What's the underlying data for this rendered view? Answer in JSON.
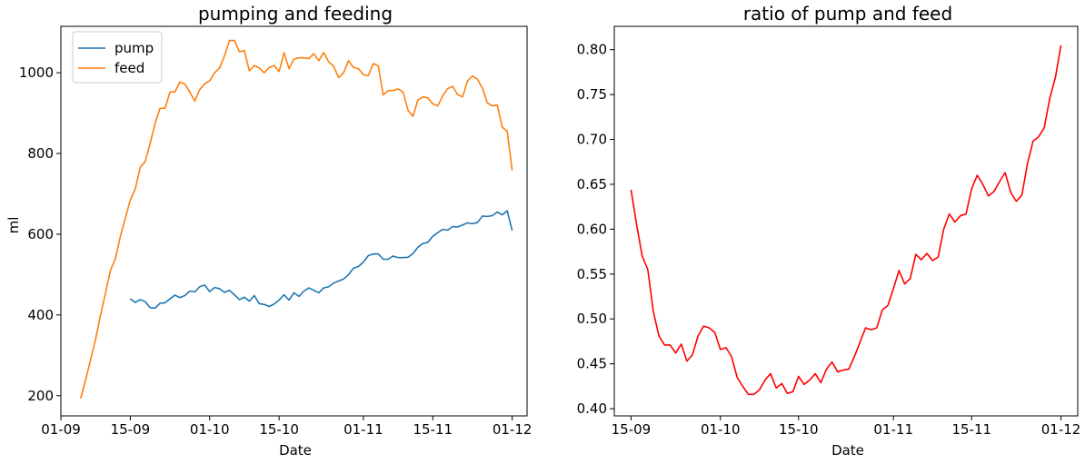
{
  "chart_data": [
    {
      "type": "line",
      "title": "pumping and feeding",
      "xlabel": "Date",
      "ylabel": "ml",
      "x_is_date": true,
      "xlim": [
        "2021-09-01",
        "2021-12-04"
      ],
      "xticks": [
        {
          "value": "2021-09-01",
          "label": "01-09"
        },
        {
          "value": "2021-09-15",
          "label": "15-09"
        },
        {
          "value": "2021-10-01",
          "label": "01-10"
        },
        {
          "value": "2021-10-15",
          "label": "15-10"
        },
        {
          "value": "2021-11-01",
          "label": "01-11"
        },
        {
          "value": "2021-11-15",
          "label": "15-11"
        },
        {
          "value": "2021-12-01",
          "label": "01-12"
        }
      ],
      "ylim": [
        150,
        1115
      ],
      "yticks": [
        200,
        400,
        600,
        800,
        1000
      ],
      "grid": false,
      "legend": "top-left",
      "series": [
        {
          "name": "pump",
          "color": "#1f77b4",
          "x": [
            "2021-09-15",
            "2021-09-16",
            "2021-09-17",
            "2021-09-18",
            "2021-09-19",
            "2021-09-20",
            "2021-09-21",
            "2021-09-22",
            "2021-09-23",
            "2021-09-24",
            "2021-09-25",
            "2021-09-26",
            "2021-09-27",
            "2021-09-28",
            "2021-09-29",
            "2021-09-30",
            "2021-10-01",
            "2021-10-02",
            "2021-10-03",
            "2021-10-04",
            "2021-10-05",
            "2021-10-06",
            "2021-10-07",
            "2021-10-08",
            "2021-10-09",
            "2021-10-10",
            "2021-10-11",
            "2021-10-12",
            "2021-10-13",
            "2021-10-14",
            "2021-10-15",
            "2021-10-16",
            "2021-10-17",
            "2021-10-18",
            "2021-10-19",
            "2021-10-20",
            "2021-10-21",
            "2021-10-22",
            "2021-10-23",
            "2021-10-24",
            "2021-10-25",
            "2021-10-26",
            "2021-10-27",
            "2021-10-28",
            "2021-10-29",
            "2021-10-30",
            "2021-10-31",
            "2021-11-01",
            "2021-11-02",
            "2021-11-03",
            "2021-11-04",
            "2021-11-05",
            "2021-11-06",
            "2021-11-07",
            "2021-11-08",
            "2021-11-09",
            "2021-11-10",
            "2021-11-11",
            "2021-11-12",
            "2021-11-13",
            "2021-11-14",
            "2021-11-15",
            "2021-11-16",
            "2021-11-17",
            "2021-11-18",
            "2021-11-19",
            "2021-11-20",
            "2021-11-21",
            "2021-11-22",
            "2021-11-23",
            "2021-11-24",
            "2021-11-25",
            "2021-11-26",
            "2021-11-27",
            "2021-11-28",
            "2021-11-29",
            "2021-11-30",
            "2021-12-01"
          ],
          "y": [
            440,
            431,
            438,
            433,
            418,
            417,
            429,
            430,
            440,
            449,
            443,
            448,
            459,
            457,
            470,
            474,
            458,
            468,
            465,
            456,
            461,
            450,
            438,
            444,
            434,
            448,
            428,
            426,
            421,
            427,
            437,
            450,
            437,
            455,
            446,
            459,
            467,
            461,
            455,
            467,
            470,
            479,
            484,
            489,
            500,
            516,
            520,
            531,
            547,
            551,
            551,
            538,
            538,
            546,
            542,
            542,
            543,
            552,
            568,
            577,
            580,
            595,
            604,
            612,
            610,
            619,
            618,
            623,
            628,
            626,
            629,
            645,
            644,
            646,
            655,
            648,
            658,
            609
          ]
        },
        {
          "name": "feed",
          "color": "#ff7f0e",
          "x": [
            "2021-09-05",
            "2021-09-06",
            "2021-09-07",
            "2021-09-08",
            "2021-09-09",
            "2021-09-10",
            "2021-09-11",
            "2021-09-12",
            "2021-09-13",
            "2021-09-14",
            "2021-09-15",
            "2021-09-16",
            "2021-09-17",
            "2021-09-18",
            "2021-09-19",
            "2021-09-20",
            "2021-09-21",
            "2021-09-22",
            "2021-09-23",
            "2021-09-24",
            "2021-09-25",
            "2021-09-26",
            "2021-09-27",
            "2021-09-28",
            "2021-09-29",
            "2021-09-30",
            "2021-10-01",
            "2021-10-02",
            "2021-10-03",
            "2021-10-04",
            "2021-10-05",
            "2021-10-06",
            "2021-10-07",
            "2021-10-08",
            "2021-10-09",
            "2021-10-10",
            "2021-10-11",
            "2021-10-12",
            "2021-10-13",
            "2021-10-14",
            "2021-10-15",
            "2021-10-16",
            "2021-10-17",
            "2021-10-18",
            "2021-10-19",
            "2021-10-20",
            "2021-10-21",
            "2021-10-22",
            "2021-10-23",
            "2021-10-24",
            "2021-10-25",
            "2021-10-26",
            "2021-10-27",
            "2021-10-28",
            "2021-10-29",
            "2021-10-30",
            "2021-10-31",
            "2021-11-01",
            "2021-11-02",
            "2021-11-03",
            "2021-11-04",
            "2021-11-05",
            "2021-11-06",
            "2021-11-07",
            "2021-11-08",
            "2021-11-09",
            "2021-11-10",
            "2021-11-11",
            "2021-11-12",
            "2021-11-13",
            "2021-11-14",
            "2021-11-15",
            "2021-11-16",
            "2021-11-17",
            "2021-11-18",
            "2021-11-19",
            "2021-11-20",
            "2021-11-21",
            "2021-11-22",
            "2021-11-23",
            "2021-11-24",
            "2021-11-25",
            "2021-11-26",
            "2021-11-27",
            "2021-11-28",
            "2021-11-29",
            "2021-11-30",
            "2021-12-01"
          ],
          "y": [
            193,
            240,
            290,
            340,
            400,
            455,
            510,
            540,
            595,
            640,
            685,
            712,
            766,
            780,
            825,
            875,
            912,
            912,
            952,
            953,
            977,
            972,
            952,
            930,
            958,
            973,
            980,
            1000,
            1012,
            1042,
            1080,
            1080,
            1052,
            1055,
            1005,
            1018,
            1012,
            1000,
            1013,
            1018,
            1003,
            1050,
            1010,
            1034,
            1037,
            1037,
            1035,
            1047,
            1030,
            1050,
            1027,
            1016,
            988,
            1000,
            1030,
            1013,
            1010,
            995,
            993,
            1023,
            1017,
            945,
            956,
            956,
            960,
            952,
            907,
            892,
            933,
            940,
            938,
            923,
            918,
            943,
            961,
            966,
            946,
            940,
            980,
            992,
            984,
            962,
            925,
            918,
            920,
            865,
            855,
            758
          ]
        }
      ]
    },
    {
      "type": "line",
      "title": "ratio of pump and feed",
      "xlabel": "Date",
      "ylabel": "",
      "x_is_date": true,
      "xlim": [
        "2021-09-12",
        "2021-12-04"
      ],
      "xticks": [
        {
          "value": "2021-09-15",
          "label": "15-09"
        },
        {
          "value": "2021-10-01",
          "label": "01-10"
        },
        {
          "value": "2021-10-15",
          "label": "15-10"
        },
        {
          "value": "2021-11-01",
          "label": "01-11"
        },
        {
          "value": "2021-11-15",
          "label": "15-11"
        },
        {
          "value": "2021-12-01",
          "label": "01-12"
        }
      ],
      "ylim": [
        0.392,
        0.826
      ],
      "yticks": [
        0.4,
        0.45,
        0.5,
        0.55,
        0.6,
        0.65,
        0.7,
        0.75,
        0.8
      ],
      "yticklabels": [
        "0.40",
        "0.45",
        "0.50",
        "0.55",
        "0.60",
        "0.65",
        "0.70",
        "0.75",
        "0.80"
      ],
      "grid": false,
      "legend": "none",
      "series": [
        {
          "color": "#ff0000",
          "x": [
            "2021-09-15",
            "2021-09-16",
            "2021-09-17",
            "2021-09-18",
            "2021-09-19",
            "2021-09-20",
            "2021-09-21",
            "2021-09-22",
            "2021-09-23",
            "2021-09-24",
            "2021-09-25",
            "2021-09-26",
            "2021-09-27",
            "2021-09-28",
            "2021-09-29",
            "2021-09-30",
            "2021-10-01",
            "2021-10-02",
            "2021-10-03",
            "2021-10-04",
            "2021-10-05",
            "2021-10-06",
            "2021-10-07",
            "2021-10-08",
            "2021-10-09",
            "2021-10-10",
            "2021-10-11",
            "2021-10-12",
            "2021-10-13",
            "2021-10-14",
            "2021-10-15",
            "2021-10-16",
            "2021-10-17",
            "2021-10-18",
            "2021-10-19",
            "2021-10-20",
            "2021-10-21",
            "2021-10-22",
            "2021-10-23",
            "2021-10-24",
            "2021-10-25",
            "2021-10-26",
            "2021-10-27",
            "2021-10-28",
            "2021-10-29",
            "2021-10-30",
            "2021-10-31",
            "2021-11-01",
            "2021-11-02",
            "2021-11-03",
            "2021-11-04",
            "2021-11-05",
            "2021-11-06",
            "2021-11-07",
            "2021-11-08",
            "2021-11-09",
            "2021-11-10",
            "2021-11-11",
            "2021-11-12",
            "2021-11-13",
            "2021-11-14",
            "2021-11-15",
            "2021-11-16",
            "2021-11-17",
            "2021-11-18",
            "2021-11-19",
            "2021-11-20",
            "2021-11-21",
            "2021-11-22",
            "2021-11-23",
            "2021-11-24",
            "2021-11-25",
            "2021-11-26",
            "2021-11-27",
            "2021-11-28",
            "2021-11-29",
            "2021-11-30",
            "2021-12-01"
          ],
          "y": [
            0.644,
            0.605,
            0.57,
            0.555,
            0.508,
            0.481,
            0.471,
            0.471,
            0.462,
            0.472,
            0.453,
            0.46,
            0.481,
            0.492,
            0.49,
            0.485,
            0.466,
            0.468,
            0.458,
            0.435,
            0.425,
            0.416,
            0.416,
            0.421,
            0.432,
            0.439,
            0.423,
            0.428,
            0.417,
            0.419,
            0.436,
            0.427,
            0.432,
            0.439,
            0.429,
            0.444,
            0.452,
            0.441,
            0.443,
            0.444,
            0.458,
            0.474,
            0.49,
            0.488,
            0.49,
            0.51,
            0.515,
            0.534,
            0.554,
            0.539,
            0.545,
            0.572,
            0.566,
            0.573,
            0.565,
            0.569,
            0.6,
            0.617,
            0.608,
            0.615,
            0.617,
            0.645,
            0.66,
            0.65,
            0.637,
            0.642,
            0.653,
            0.663,
            0.641,
            0.631,
            0.638,
            0.673,
            0.698,
            0.703,
            0.713,
            0.746,
            0.769,
            0.805
          ]
        }
      ]
    }
  ]
}
